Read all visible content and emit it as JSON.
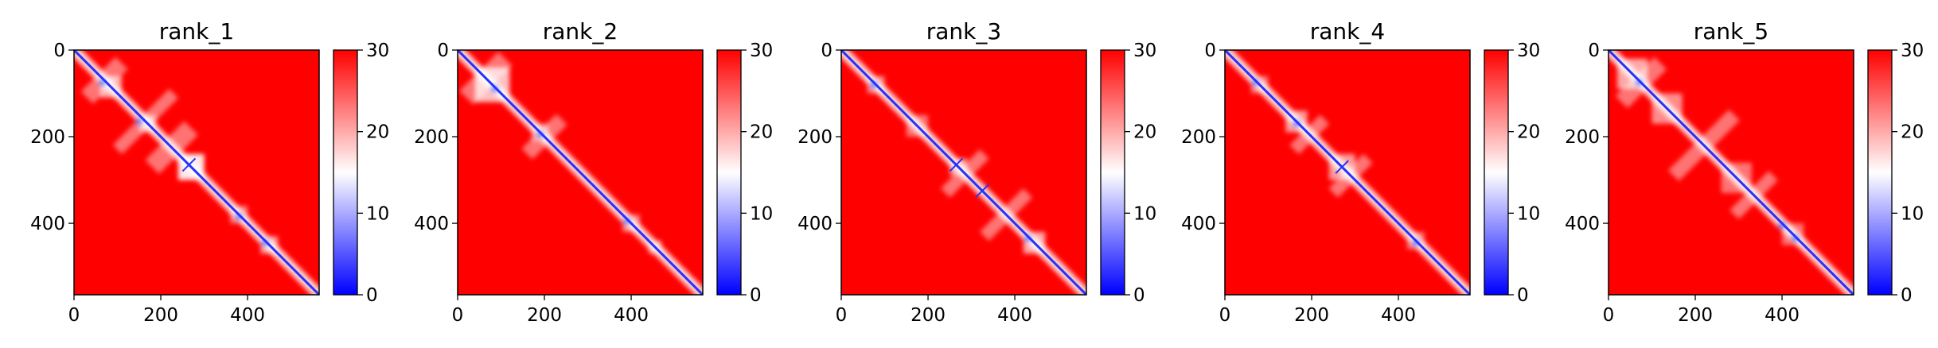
{
  "chart_data": [
    {
      "type": "heatmap",
      "title": "rank_1",
      "x_ticks": [
        0,
        200,
        400
      ],
      "y_ticks": [
        0,
        200,
        400
      ],
      "xlim": [
        0,
        565
      ],
      "ylim": [
        565,
        0
      ],
      "colorbar": {
        "min": 0,
        "max": 30,
        "ticks": [
          0,
          10,
          20,
          30
        ],
        "colormap": [
          "#0000ff",
          "#ffffff",
          "#ff0000"
        ]
      },
      "features": {
        "blocks": [
          [
            60,
            110,
            0.65
          ],
          [
            150,
            190,
            0.55
          ],
          [
            240,
            300,
            0.9
          ],
          [
            360,
            400,
            0.5
          ],
          [
            430,
            470,
            0.6
          ]
        ],
        "off_diagonal": [
          [
            30,
            110,
            40
          ],
          [
            180,
            270,
            45
          ],
          [
            100,
            230,
            30
          ]
        ],
        "crosses": [
          [
            265,
            265
          ]
        ],
        "dots": [
          [
            65,
            75
          ],
          [
            150,
            165
          ],
          [
            380,
            385
          ],
          [
            440,
            445
          ]
        ]
      }
    },
    {
      "type": "heatmap",
      "title": "rank_2",
      "x_ticks": [
        0,
        200,
        400
      ],
      "y_ticks": [
        0,
        200,
        400
      ],
      "xlim": [
        0,
        565
      ],
      "ylim": [
        565,
        0
      ],
      "colorbar": {
        "min": 0,
        "max": 30,
        "ticks": [
          0,
          10,
          20,
          30
        ],
        "colormap": [
          "#0000ff",
          "#ffffff",
          "#ff0000"
        ]
      },
      "features": {
        "blocks": [
          [
            40,
            120,
            0.75
          ],
          [
            170,
            210,
            0.45
          ],
          [
            380,
            420,
            0.5
          ],
          [
            440,
            470,
            0.55
          ]
        ],
        "off_diagonal": [
          [
            20,
            110,
            45
          ],
          [
            160,
            240,
            35
          ]
        ],
        "crosses": [],
        "dots": [
          [
            85,
            90
          ],
          [
            190,
            195
          ],
          [
            390,
            395
          ]
        ]
      }
    },
    {
      "type": "heatmap",
      "title": "rank_3",
      "x_ticks": [
        0,
        200,
        400
      ],
      "y_ticks": [
        0,
        200,
        400
      ],
      "xlim": [
        0,
        565
      ],
      "ylim": [
        565,
        0
      ],
      "colorbar": {
        "min": 0,
        "max": 30,
        "ticks": [
          0,
          10,
          20,
          30
        ],
        "colormap": [
          "#0000ff",
          "#ffffff",
          "#ff0000"
        ]
      },
      "features": {
        "blocks": [
          [
            60,
            100,
            0.5
          ],
          [
            150,
            200,
            0.45
          ],
          [
            250,
            290,
            0.55
          ],
          [
            420,
            470,
            0.65
          ]
        ],
        "off_diagonal": [
          [
            240,
            330,
            30
          ],
          [
            330,
            430,
            30
          ]
        ],
        "crosses": [
          [
            265,
            265
          ],
          [
            325,
            325
          ]
        ],
        "dots": [
          [
            75,
            80
          ],
          [
            430,
            435
          ]
        ]
      }
    },
    {
      "type": "heatmap",
      "title": "rank_4",
      "x_ticks": [
        0,
        200,
        400
      ],
      "y_ticks": [
        0,
        200,
        400
      ],
      "xlim": [
        0,
        565
      ],
      "ylim": [
        565,
        0
      ],
      "colorbar": {
        "min": 0,
        "max": 30,
        "ticks": [
          0,
          10,
          20,
          30
        ],
        "colormap": [
          "#0000ff",
          "#ffffff",
          "#ff0000"
        ]
      },
      "features": {
        "blocks": [
          [
            60,
            100,
            0.45
          ],
          [
            140,
            190,
            0.6
          ],
          [
            240,
            300,
            0.6
          ],
          [
            420,
            460,
            0.45
          ]
        ],
        "off_diagonal": [
          [
            160,
            230,
            30
          ],
          [
            250,
            330,
            30
          ]
        ],
        "crosses": [
          [
            270,
            270
          ]
        ],
        "dots": [
          [
            70,
            75
          ],
          [
            165,
            170
          ],
          [
            440,
            445
          ]
        ]
      }
    },
    {
      "type": "heatmap",
      "title": "rank_5",
      "x_ticks": [
        0,
        200,
        400
      ],
      "y_ticks": [
        0,
        200,
        400
      ],
      "xlim": [
        0,
        565
      ],
      "ylim": [
        565,
        0
      ],
      "colorbar": {
        "min": 0,
        "max": 30,
        "ticks": [
          0,
          10,
          20,
          30
        ],
        "colormap": [
          "#0000ff",
          "#ffffff",
          "#ff0000"
        ]
      },
      "features": {
        "blocks": [
          [
            20,
            90,
            0.65
          ],
          [
            100,
            170,
            0.55
          ],
          [
            260,
            330,
            0.45
          ],
          [
            400,
            450,
            0.45
          ]
        ],
        "off_diagonal": [
          [
            30,
            120,
            40
          ],
          [
            150,
            290,
            35
          ],
          [
            290,
            380,
            30
          ]
        ],
        "crosses": [],
        "dots": [
          [
            70,
            75
          ],
          [
            400,
            405
          ],
          [
            430,
            435
          ]
        ]
      }
    }
  ]
}
